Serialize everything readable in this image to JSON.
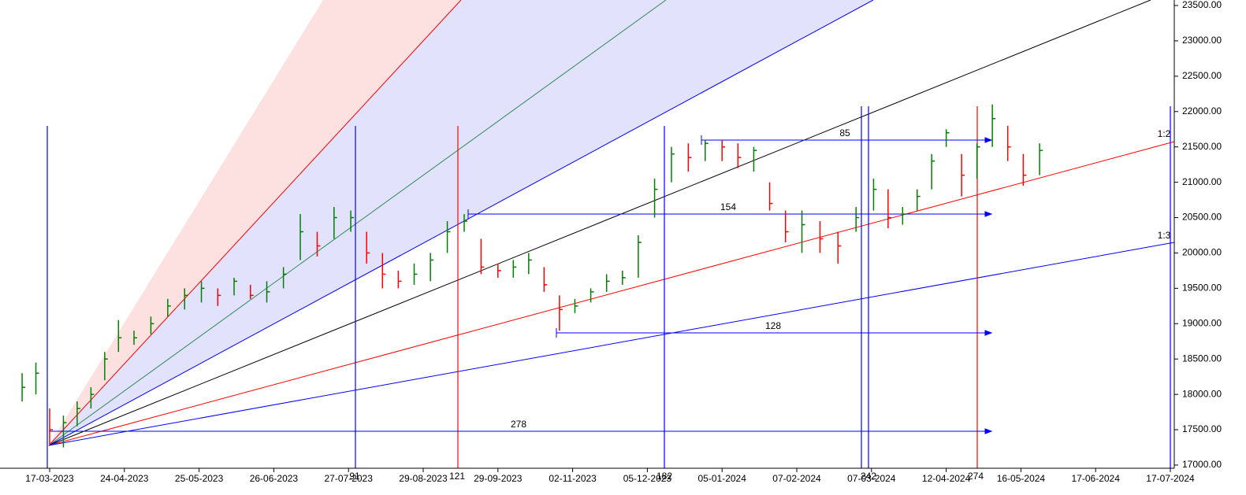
{
  "chart_data": {
    "type": "ohlc",
    "x": [
      "03-03-2023",
      "10-03-2023",
      "17-03-2023",
      "24-03-2023",
      "31-03-2023",
      "07-04-2023",
      "14-04-2023",
      "21-04-2023",
      "28-04-2023",
      "05-05-2023",
      "12-05-2023",
      "19-05-2023",
      "26-05-2023",
      "02-06-2023",
      "09-06-2023",
      "16-06-2023",
      "23-06-2023",
      "30-06-2023",
      "07-07-2023",
      "14-07-2023",
      "21-07-2023",
      "28-07-2023",
      "04-08-2023",
      "11-08-2023",
      "18-08-2023",
      "25-08-2023",
      "01-09-2023",
      "08-09-2023",
      "15-09-2023",
      "22-09-2023",
      "29-09-2023",
      "06-10-2023",
      "13-10-2023",
      "20-10-2023",
      "27-10-2023",
      "03-11-2023",
      "10-11-2023",
      "17-11-2023",
      "24-11-2023",
      "01-12-2023",
      "08-12-2023",
      "15-12-2023",
      "22-12-2023",
      "29-12-2023",
      "05-01-2024",
      "12-01-2024",
      "19-01-2024",
      "26-01-2024",
      "02-02-2024",
      "09-02-2024",
      "16-02-2024",
      "23-02-2024",
      "01-03-2024",
      "08-03-2024",
      "15-03-2024",
      "22-03-2024",
      "29-03-2024",
      "05-04-2024",
      "12-04-2024",
      "19-04-2024",
      "26-04-2024",
      "03-05-2024",
      "10-05-2024",
      "17-05-2024",
      "24-05-2024"
    ],
    "high": [
      18300,
      18450,
      17800,
      17700,
      17900,
      18100,
      18600,
      19050,
      18900,
      19100,
      19350,
      19500,
      19600,
      19500,
      19650,
      19550,
      19600,
      19800,
      20550,
      20300,
      20650,
      20600,
      20300,
      20000,
      19750,
      19850,
      20000,
      20450,
      20550,
      20200,
      19850,
      19900,
      20000,
      19800,
      19400,
      19350,
      19500,
      19700,
      19750,
      20250,
      21050,
      21500,
      21550,
      21600,
      21600,
      21550,
      21500,
      21000,
      20600,
      20600,
      20450,
      20300,
      20650,
      21050,
      20900,
      20650,
      20900,
      21400,
      21750,
      21400,
      21550,
      22100,
      21800,
      21400,
      21550
    ],
    "low": [
      17900,
      18000,
      17300,
      17250,
      17550,
      17800,
      18200,
      18600,
      18700,
      18850,
      19100,
      19200,
      19300,
      19250,
      19400,
      19350,
      19300,
      19500,
      19900,
      19950,
      20200,
      20300,
      19850,
      19500,
      19500,
      19550,
      19600,
      20000,
      20300,
      19700,
      19650,
      19650,
      19700,
      19450,
      18900,
      19150,
      19300,
      19450,
      19550,
      19650,
      20500,
      21000,
      21150,
      21300,
      21300,
      21200,
      21150,
      20600,
      20150,
      20000,
      20000,
      19850,
      20300,
      20600,
      20350,
      20400,
      20600,
      20900,
      21500,
      20800,
      21050,
      21500,
      21300,
      20950,
      21100
    ],
    "close": [
      18100,
      18300,
      17500,
      17600,
      17800,
      18000,
      18500,
      18800,
      18800,
      19000,
      19250,
      19400,
      19500,
      19400,
      19600,
      19400,
      19450,
      19700,
      20300,
      20100,
      20500,
      20500,
      20000,
      19700,
      19600,
      19700,
      19900,
      20300,
      20450,
      19800,
      19750,
      19800,
      19900,
      19550,
      19200,
      19250,
      19450,
      19600,
      19650,
      20150,
      20900,
      21400,
      21350,
      21550,
      21500,
      21350,
      21450,
      20700,
      20300,
      20400,
      20200,
      20100,
      20500,
      20900,
      20500,
      20550,
      20800,
      21300,
      21700,
      21100,
      21500,
      21900,
      21500,
      21100,
      21450
    ],
    "up_color": "#008000",
    "down_color": "#ff0000",
    "ylim": [
      16955,
      23578
    ],
    "yticks": [
      {
        "value": 17000,
        "label": "17000.00"
      },
      {
        "value": 17500,
        "label": "17500.00"
      },
      {
        "value": 18000,
        "label": "18000.00"
      },
      {
        "value": 18500,
        "label": "18500.00"
      },
      {
        "value": 19000,
        "label": "19000.00"
      },
      {
        "value": 19500,
        "label": "19500.00"
      },
      {
        "value": 20000,
        "label": "20000.00"
      },
      {
        "value": 20500,
        "label": "20500.00"
      },
      {
        "value": 21000,
        "label": "21000.00"
      },
      {
        "value": 21500,
        "label": "21500.00"
      },
      {
        "value": 22000,
        "label": "22000.00"
      },
      {
        "value": 22500,
        "label": "22500.00"
      },
      {
        "value": 23000,
        "label": "23000.00"
      },
      {
        "value": 23500,
        "label": "23500.00"
      }
    ],
    "xticks": [
      "17-03-2023",
      "24-04-2023",
      "25-05-2023",
      "26-06-2023",
      "27-07-2023",
      "29-08-2023",
      "29-09-2023",
      "02-11-2023",
      "05-12-2023",
      "05-01-2024",
      "07-02-2024",
      "07-03-2024",
      "12-04-2024",
      "16-05-2024",
      "17-06-2024",
      "17-07-2024"
    ],
    "annotations": [
      "278",
      "154",
      "128",
      "85",
      "91",
      "121",
      "182",
      "242",
      "274",
      "1:2",
      "1:3"
    ]
  }
}
